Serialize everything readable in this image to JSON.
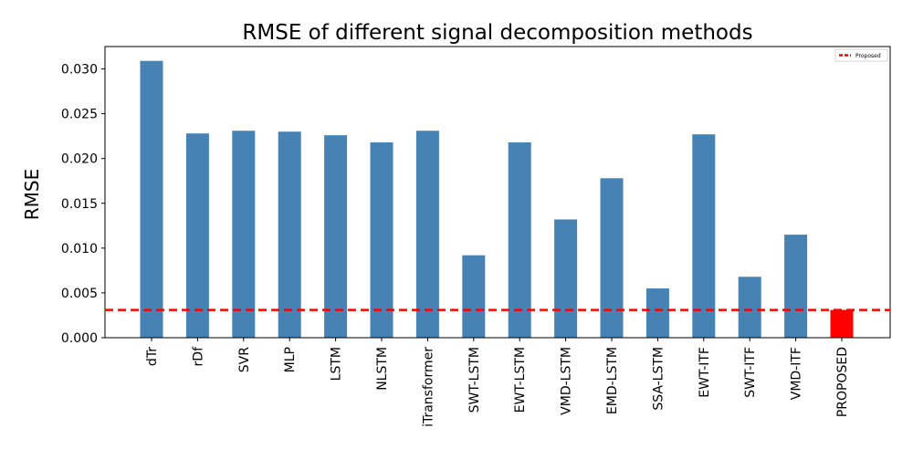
{
  "chart_data": {
    "type": "bar",
    "title": "RMSE of different signal decomposition methods",
    "xlabel": "",
    "ylabel": "RMSE",
    "ylim": [
      0,
      0.0325
    ],
    "yticks": [
      "0.000",
      "0.005",
      "0.010",
      "0.015",
      "0.020",
      "0.025",
      "0.030"
    ],
    "grid": false,
    "categories": [
      "dTr",
      "rDf",
      "SVR",
      "MLP",
      "LSTM",
      "NLSTM",
      "iTransformer",
      "SWT-LSTM",
      "EWT-LSTM",
      "VMD-LSTM",
      "EMD-LSTM",
      "SSA-LSTM",
      "EWT-ITF",
      "SWT-ITF",
      "VMD-ITF",
      "PROPOSED"
    ],
    "values": [
      0.0309,
      0.0228,
      0.0231,
      0.023,
      0.0226,
      0.0218,
      0.0231,
      0.0092,
      0.0218,
      0.0132,
      0.0178,
      0.0055,
      0.0227,
      0.0068,
      0.0115,
      0.0031
    ],
    "colors": {
      "bar": "#4682b4",
      "highlight": "#ff0000",
      "reference_line": "#ff0000"
    },
    "highlight_index": 15,
    "reference_line": {
      "value": 0.0031,
      "label": "Proposed",
      "style": "dashed"
    },
    "legend": {
      "position": "top-right",
      "entries": [
        "Proposed"
      ]
    }
  }
}
